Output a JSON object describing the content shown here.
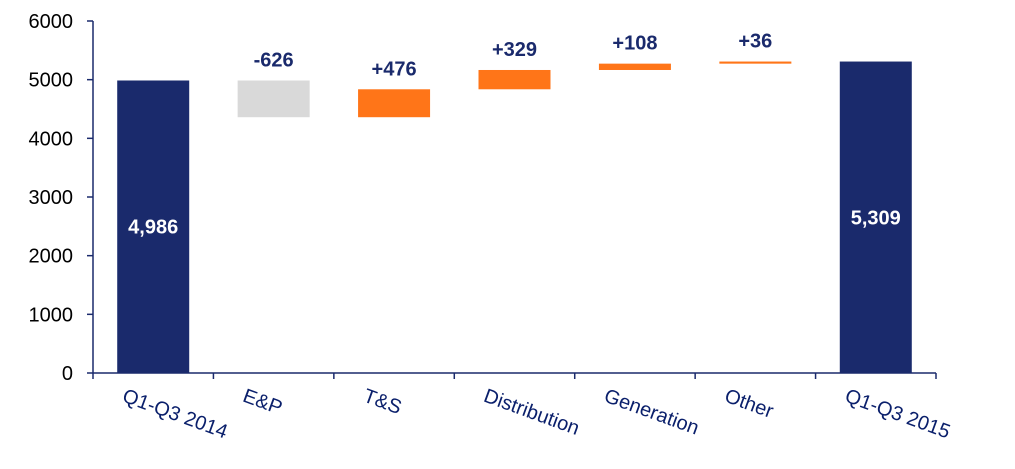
{
  "chart_data": {
    "type": "bar",
    "subtype": "waterfall",
    "categories": [
      "Q1-Q3 2014",
      "E&P",
      "T&S",
      "Distribution",
      "Generation",
      "Other",
      "Q1-Q3 2015"
    ],
    "start_value": 4986,
    "end_value": 5309,
    "changes": [
      -626,
      476,
      329,
      108,
      36
    ],
    "bar_labels": [
      "4,986",
      "-626",
      "+476",
      "+329",
      "+108",
      "+36",
      "5,309"
    ],
    "ylim": [
      0,
      6000
    ],
    "yticks": [
      "0",
      "1000",
      "2000",
      "3000",
      "4000",
      "5000",
      "6000"
    ],
    "grid": false,
    "legend": "none",
    "colors": {
      "total": "#1a2a6c",
      "decrease": "#d9d9d9",
      "increase": "#ff7518",
      "axis": "#1a2a6c",
      "label_dark": "#1a2a6c",
      "label_light": "#ffffff"
    }
  }
}
